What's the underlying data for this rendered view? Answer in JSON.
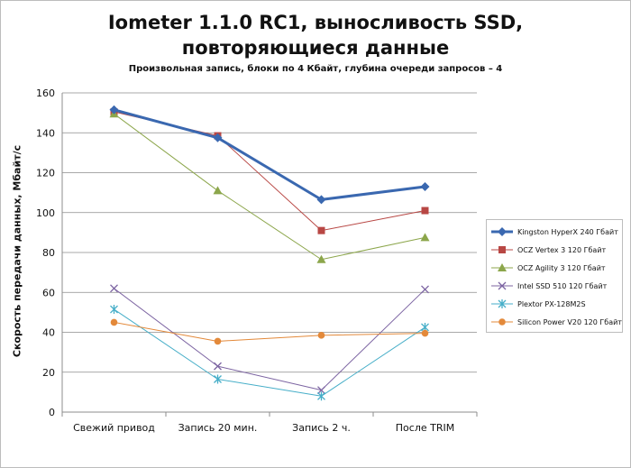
{
  "chart_data": {
    "type": "line",
    "title_line1": "Iometer 1.1.0 RC1, выносливость SSD,",
    "title_line2": "повторяющиеся данные",
    "subtitle": "Произвольная  запись, блоки по 4 Кбайт, глубина очереди запросов – 4",
    "ylabel": "Скорость  передачи данных, Мбайт/с",
    "xlabel": "",
    "categories": [
      "Свежий  привод",
      "Запись 20 мин.",
      "Запись 2 ч.",
      "После TRIM"
    ],
    "ylim": [
      0,
      160
    ],
    "yticks": [
      0,
      20,
      40,
      60,
      80,
      100,
      120,
      140,
      160
    ],
    "grid": true,
    "legend_position": "right",
    "series": [
      {
        "name": "Kingston HyperX  240 Гбайт",
        "values": [
          151.5,
          137.5,
          106.5,
          113
        ],
        "color": "#3a68b0",
        "marker": "diamond",
        "width": 3
      },
      {
        "name": "OCZ Vertex  3 120 Гбайт",
        "values": [
          150.5,
          138.5,
          91,
          101
        ],
        "color": "#b84744",
        "marker": "square",
        "width": 1
      },
      {
        "name": "OCZ Agility  3 120 Гбайт",
        "values": [
          149.5,
          111,
          76.5,
          87.5
        ],
        "color": "#8ca64b",
        "marker": "triangle",
        "width": 1
      },
      {
        "name": "Intel  SSD 510 120 Гбайт",
        "values": [
          62,
          23,
          11,
          61.5
        ],
        "color": "#7c64a2",
        "marker": "x",
        "width": 1
      },
      {
        "name": "Plextor PX-128M2S",
        "values": [
          51.5,
          16.5,
          8,
          42.5
        ],
        "color": "#46aec8",
        "marker": "star",
        "width": 1
      },
      {
        "name": "Silicon Power  V20 120 Гбайт",
        "values": [
          45,
          35.5,
          38.5,
          39.5
        ],
        "color": "#e3893a",
        "marker": "circle",
        "width": 1
      }
    ]
  }
}
